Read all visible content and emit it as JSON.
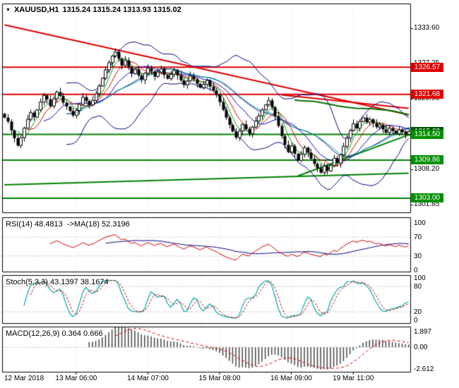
{
  "header": {
    "symbol": "XAUUSD,H1",
    "ohlc": "1315.24 1315.24 1313.93 1315.02"
  },
  "main_chart": {
    "y_ticks": [
      "1333.60",
      "1327.25",
      "1320.90",
      "1314.55",
      "1308.20",
      "1301.85"
    ],
    "badges": [
      {
        "text": "1326.57",
        "price": 1326.57,
        "type": "resistance"
      },
      {
        "text": "1321.68",
        "price": 1321.68,
        "type": "resistance"
      },
      {
        "text": "1315.02",
        "price": 1315.02,
        "type": "current"
      },
      {
        "text": "1314.50",
        "price": 1314.5,
        "type": "support"
      },
      {
        "text": "1309.86",
        "price": 1309.86,
        "type": "support"
      },
      {
        "text": "1303.00",
        "price": 1303.0,
        "type": "support"
      }
    ]
  },
  "indicators": {
    "rsi": {
      "label": "RSI(14) 48.4813  ->MA(18) 52.3196",
      "ticks": [
        "100",
        "70",
        "30",
        "0"
      ]
    },
    "stoch": {
      "label": "Stoch(5,3,3) 43.1397 38.1674",
      "ticks": [
        "100",
        "80",
        "20",
        "0"
      ]
    },
    "macd": {
      "label": "MACD(12,26,9) 0.364 0.666",
      "ticks": [
        "1.897",
        "0.00",
        "-2.612"
      ]
    }
  },
  "x_axis": {
    "labels": [
      {
        "text": "12 Mar 2018",
        "bar": 0,
        "align": "left"
      },
      {
        "text": "13 Mar 06:00",
        "bar": 22,
        "align": "center"
      },
      {
        "text": "14 Mar 07:00",
        "bar": 44,
        "align": "center"
      },
      {
        "text": "15 Mar 08:00",
        "bar": 66,
        "align": "center"
      },
      {
        "text": "16 Mar 09:00",
        "bar": 88,
        "align": "center"
      },
      {
        "text": "19 Mar 11:00",
        "bar": 107,
        "align": "center"
      }
    ]
  },
  "chart_data": {
    "type": "candlestick",
    "symbol": "XAUUSD",
    "timeframe": "H1",
    "current_bar": {
      "open": 1315.24,
      "high": 1315.24,
      "low": 1313.93,
      "close": 1315.02
    },
    "y_range": [
      1300.8,
      1334.2
    ],
    "closes": [
      1317.5,
      1316.8,
      1315.2,
      1313.8,
      1312.5,
      1313.9,
      1315.6,
      1317.2,
      1318.4,
      1317.6,
      1318.9,
      1320.3,
      1321.5,
      1320.8,
      1319.6,
      1320.9,
      1322.1,
      1321.4,
      1320.2,
      1319.5,
      1318.7,
      1317.9,
      1318.8,
      1319.9,
      1321.2,
      1320.5,
      1319.8,
      1320.6,
      1321.8,
      1323.2,
      1324.6,
      1326.1,
      1327.4,
      1328.6,
      1329.3,
      1328.1,
      1326.9,
      1327.8,
      1326.5,
      1325.4,
      1326.2,
      1325.1,
      1324.3,
      1325.5,
      1326.4,
      1325.8,
      1324.9,
      1325.7,
      1326.3,
      1325.2,
      1324.5,
      1325.3,
      1326.0,
      1325.1,
      1324.2,
      1323.4,
      1324.1,
      1325.0,
      1324.4,
      1323.6,
      1322.9,
      1323.5,
      1324.2,
      1323.1,
      1322.4,
      1321.6,
      1320.3,
      1318.9,
      1317.5,
      1316.2,
      1315.0,
      1313.9,
      1315.1,
      1316.3,
      1315.4,
      1314.6,
      1315.8,
      1316.9,
      1317.8,
      1318.9,
      1319.8,
      1320.6,
      1319.4,
      1317.8,
      1316.0,
      1314.2,
      1312.6,
      1311.3,
      1312.4,
      1311.0,
      1309.8,
      1310.9,
      1312.1,
      1311.2,
      1310.1,
      1309.2,
      1308.4,
      1307.6,
      1308.8,
      1307.9,
      1308.9,
      1310.2,
      1309.3,
      1310.8,
      1312.3,
      1313.8,
      1315.2,
      1316.4,
      1315.6,
      1316.8,
      1317.5,
      1316.7,
      1317.2,
      1316.5,
      1315.8,
      1316.2,
      1315.4,
      1314.8,
      1315.6,
      1315.1,
      1314.6,
      1315.3,
      1314.9,
      1314.5,
      1315.02
    ],
    "levels": {
      "resistance": [
        1326.57,
        1321.68
      ],
      "support": [
        1314.5,
        1309.86,
        1303.0
      ]
    },
    "trendlines": [
      {
        "b1": 0,
        "p1": 1334.2,
        "b2": 124,
        "p2": 1318.0,
        "color": "#dd0000",
        "width": 2
      },
      {
        "b1": 85,
        "p1": 1321.6,
        "b2": 124,
        "p2": 1319.2,
        "color": "#dd0000",
        "width": 2
      },
      {
        "b1": 0,
        "p1": 1305.4,
        "b2": 124,
        "p2": 1307.5,
        "color": "#008000",
        "width": 2
      },
      {
        "b1": 90,
        "p1": 1307.0,
        "b2": 124,
        "p2": 1314.4,
        "color": "#008000",
        "width": 2
      }
    ],
    "overlays": {
      "bollinger": {
        "period": 20,
        "deviation": 2,
        "color": "#000080"
      },
      "moving_averages": [
        {
          "period": 5,
          "color": "#00a000"
        },
        {
          "period": 8,
          "color": "#dd0000"
        },
        {
          "period": 13,
          "color": "#0000d0"
        },
        {
          "period": 21,
          "color": "#00a8a8"
        },
        {
          "period": 90,
          "color": "#007000"
        }
      ]
    },
    "indicators": {
      "rsi": {
        "period": 14,
        "ma_period": 18,
        "value": 48.4813,
        "ma_value": 52.3196,
        "scale": [
          0,
          100
        ],
        "levels": [
          30,
          70
        ]
      },
      "stoch": {
        "k": 5,
        "d": 3,
        "slowing": 3,
        "value": 43.1397,
        "signal": 38.1674,
        "scale": [
          0,
          100
        ],
        "levels": [
          20,
          80
        ]
      },
      "macd": {
        "fast": 12,
        "slow": 26,
        "signal_period": 9,
        "value": 0.364,
        "signal": 0.666,
        "scale": [
          -2.612,
          1.897
        ]
      }
    }
  }
}
